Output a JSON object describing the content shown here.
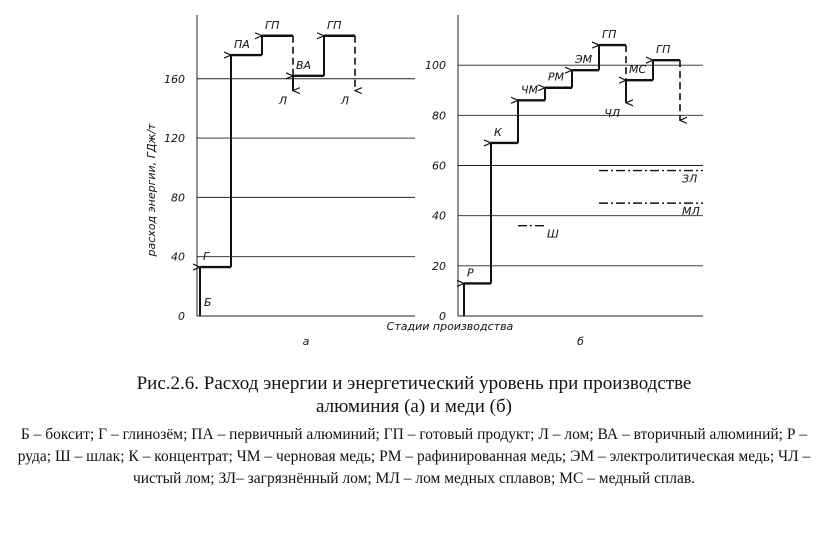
{
  "chart_data": [
    {
      "type": "step",
      "letter": "а",
      "start_label": "Б",
      "ylim": [
        0,
        203
      ],
      "yticks": [
        0,
        40,
        80,
        120,
        160
      ],
      "steps": [
        {
          "label": "Г",
          "value": 33,
          "kind": "rise"
        },
        {
          "label": "ПА",
          "value": 176,
          "kind": "rise"
        },
        {
          "label": "ГП",
          "value": 189,
          "kind": "rise"
        },
        {
          "label": "Л",
          "value": 152,
          "kind": "drop"
        },
        {
          "label": "ВА",
          "value": 162,
          "kind": "rise"
        },
        {
          "label": "ГП",
          "value": 189,
          "kind": "rise"
        },
        {
          "label": "Л",
          "value": 152,
          "kind": "drop"
        }
      ]
    },
    {
      "type": "step",
      "letter": "б",
      "ylim": [
        0,
        120
      ],
      "yticks": [
        0,
        20,
        40,
        60,
        80,
        100
      ],
      "steps": [
        {
          "label": "Р",
          "value": 13,
          "kind": "rise"
        },
        {
          "label": "К",
          "value": 69,
          "kind": "rise"
        },
        {
          "label": "ЧМ",
          "value": 86,
          "kind": "rise"
        },
        {
          "label": "РМ",
          "value": 91,
          "kind": "rise"
        },
        {
          "label": "ЭМ",
          "value": 98,
          "kind": "rise"
        },
        {
          "label": "ГП",
          "value": 108,
          "kind": "rise"
        },
        {
          "label": "ЧЛ",
          "value": 85,
          "kind": "drop"
        },
        {
          "label": "МС",
          "value": 94,
          "kind": "rise"
        },
        {
          "label": "ГП",
          "value": 102,
          "kind": "rise"
        },
        {
          "label": null,
          "value": 78,
          "kind": "drop"
        }
      ],
      "annotations": [
        {
          "label": "ЗЛ",
          "value": 58
        },
        {
          "label": "МЛ",
          "value": 45
        },
        {
          "label": "Ш",
          "value": 36
        }
      ]
    }
  ],
  "y_label": "расход энергии, ГДж/т",
  "x_label": "Стадии производства",
  "caption": {
    "title": "Рис.2.6.  Расход энергии  и энергетический  уровень при производстве алюминия (а)  и меди (б)",
    "legend": "Б – боксит; Г – глинозём; ПА – первичный алюминий; ГП – готовый продукт; Л – лом; ВА – вторичный алюминий; Р – руда; Ш –  шлак; К – концентрат; ЧМ – черновая медь; РМ – рафинированная медь; ЭМ – электролитическая медь; ЧЛ – чистый лом; ЗЛ– загрязнённый лом; МЛ – лом медных сплавов; МС – медный сплав."
  }
}
